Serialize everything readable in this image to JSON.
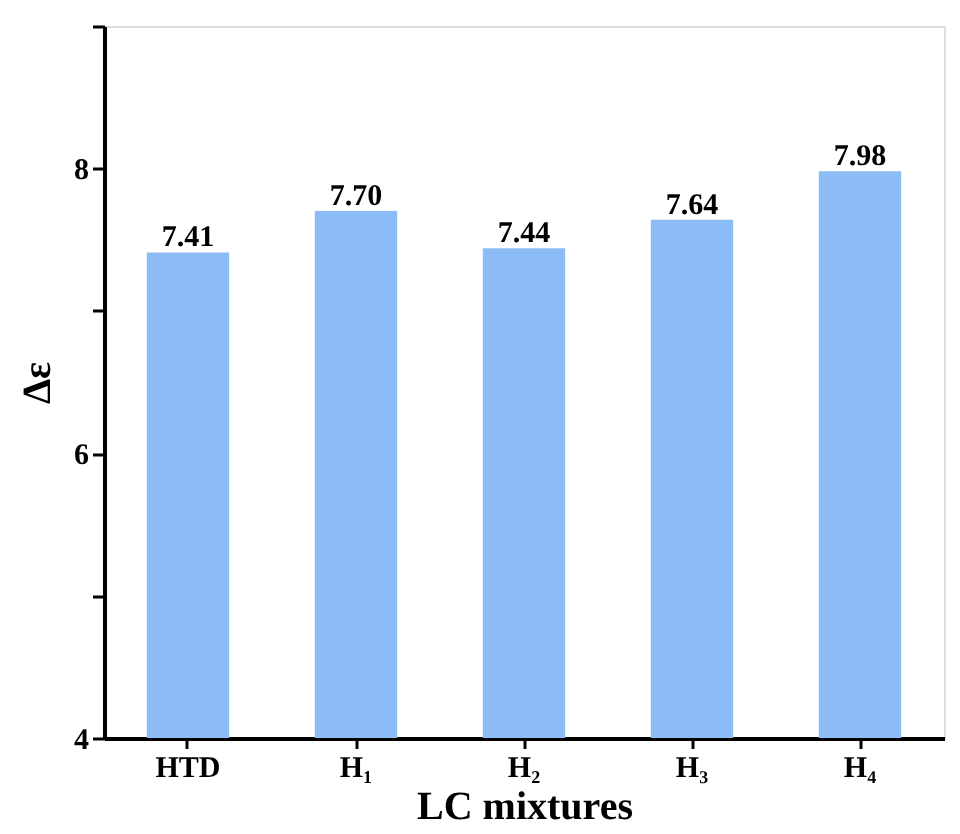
{
  "chart_data": {
    "type": "bar",
    "xlabel": "LC mixtures",
    "ylabel": "Δε",
    "categories": [
      "HTD",
      "H₁",
      "H₂",
      "H₃",
      "H₄"
    ],
    "values": [
      7.41,
      7.7,
      7.44,
      7.64,
      7.98
    ],
    "value_labels": [
      "7.41",
      "7.70",
      "7.44",
      "7.64",
      "7.98"
    ],
    "color": "#8cbcf5",
    "ylim": [
      4,
      9
    ],
    "yticks": [
      4,
      {
        "value": 5,
        "label": null
      },
      6,
      {
        "value": 7,
        "label": null
      },
      8,
      {
        "value": 9,
        "label": null
      }
    ],
    "grid": false
  }
}
